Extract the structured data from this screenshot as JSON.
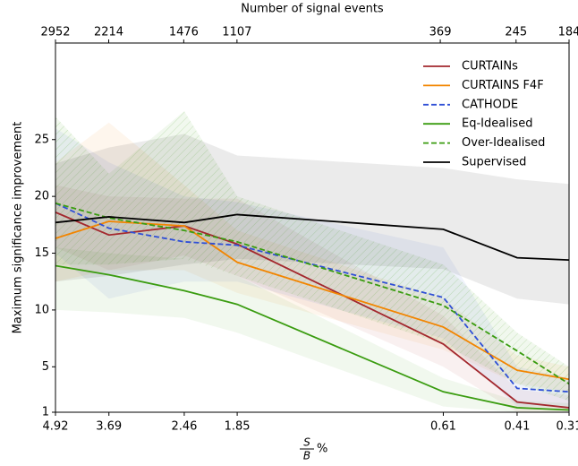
{
  "chart_data": {
    "type": "line",
    "x2_label": "Number of signal events",
    "y_label": "Maximum significance improvement",
    "x_label": {
      "numerator": "S",
      "denominator": "B",
      "suffix": "%"
    },
    "xscale": "log",
    "x": [
      4.92,
      3.69,
      2.46,
      1.85,
      0.61,
      0.41,
      0.31
    ],
    "xlim": [
      4.92,
      0.31
    ],
    "xticks": [
      4.92,
      3.69,
      2.46,
      1.85,
      0.61,
      0.41,
      0.31
    ],
    "x2lim": [
      2952,
      184
    ],
    "x2ticks": [
      2952,
      2214,
      1476,
      1107,
      369,
      245,
      184
    ],
    "ylim": [
      1,
      33.5
    ],
    "yticks": [
      1,
      5,
      10,
      15,
      20,
      25
    ],
    "legend": "upper right",
    "series": [
      {
        "name": "CURTAINs",
        "color": "#a3282e",
        "dash": false,
        "hatch": false,
        "values": [
          18.6,
          16.6,
          17.4,
          15.8,
          7.0,
          1.9,
          1.4
        ],
        "upper": [
          21,
          20,
          19.8,
          19.8,
          9.5,
          3,
          2.5
        ],
        "lower": [
          15.5,
          13.5,
          14.8,
          13,
          5,
          1,
          1
        ]
      },
      {
        "name": "CURTAINS F4F",
        "color": "#f28500",
        "dash": false,
        "hatch": false,
        "values": [
          16.3,
          17.8,
          17.4,
          14.2,
          8.5,
          4.7,
          3.9
        ],
        "upper": [
          23,
          26.5,
          21,
          17,
          11,
          6,
          5
        ],
        "lower": [
          12.5,
          13.5,
          13.5,
          11.5,
          6.5,
          3.5,
          2.8
        ]
      },
      {
        "name": "CATHODE",
        "color": "#2f4fd6",
        "dash": true,
        "hatch": false,
        "values": [
          19.4,
          17.2,
          16.0,
          15.7,
          11.1,
          3.1,
          2.8
        ],
        "upper": [
          26,
          23,
          20,
          19.5,
          15.5,
          5,
          4
        ],
        "lower": [
          15,
          11,
          12.5,
          12.5,
          7.5,
          1.5,
          1.5
        ]
      },
      {
        "name": "Eq-Idealised",
        "color": "#3a9c10",
        "dash": false,
        "hatch": false,
        "values": [
          13.9,
          13.1,
          11.7,
          10.5,
          2.8,
          1.4,
          1.2
        ],
        "upper": [
          15.5,
          15,
          14.5,
          13,
          4,
          2,
          1.8
        ],
        "lower": [
          10,
          9.8,
          9.3,
          8,
          1.5,
          1,
          1
        ]
      },
      {
        "name": "Over-Idealised",
        "color": "#3a9c10",
        "dash": true,
        "hatch": true,
        "values": [
          19.4,
          18.1,
          17.0,
          16.0,
          10.4,
          6.4,
          3.5
        ],
        "upper": [
          27,
          22,
          27.5,
          20,
          14,
          8,
          5
        ],
        "lower": [
          14,
          14,
          14.5,
          13,
          7,
          3.5,
          2
        ]
      },
      {
        "name": "Supervised",
        "color": "#000000",
        "dash": false,
        "hatch": false,
        "values": [
          17.7,
          18.2,
          17.7,
          18.4,
          17.1,
          14.6,
          14.4
        ],
        "upper": [
          22.9,
          24.3,
          25.5,
          23.6,
          22.5,
          21.5,
          21.1
        ],
        "lower": [
          12.5,
          13,
          14,
          14.5,
          13.6,
          11,
          10.5
        ]
      }
    ]
  }
}
